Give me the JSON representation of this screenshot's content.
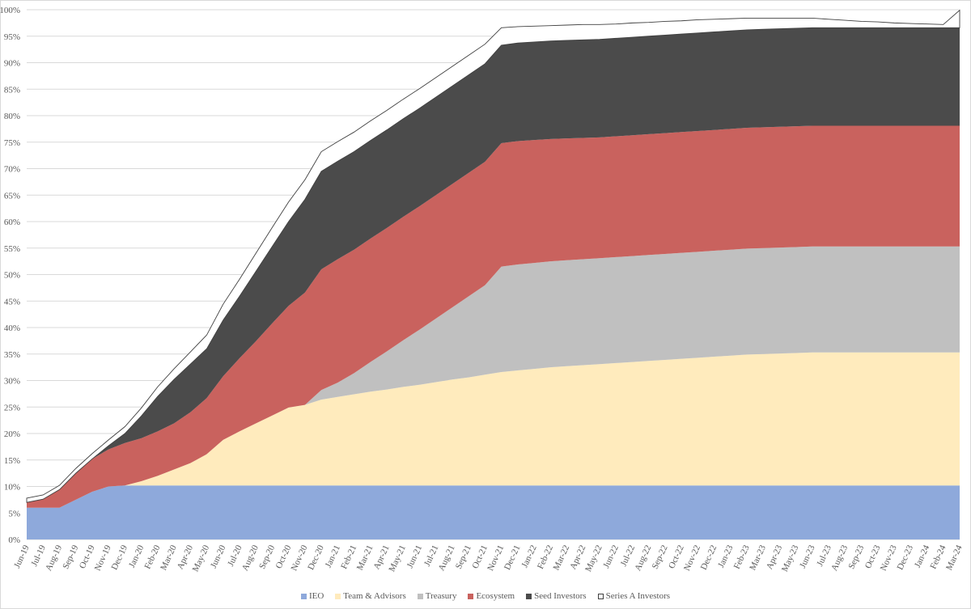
{
  "chart_data": {
    "type": "area",
    "stacked": true,
    "title": "",
    "xlabel": "",
    "ylabel": "",
    "ylim": [
      0,
      100
    ],
    "y_tick_labels": [
      "0%",
      "5%",
      "10%",
      "15%",
      "20%",
      "25%",
      "30%",
      "35%",
      "40%",
      "45%",
      "50%",
      "55%",
      "60%",
      "65%",
      "70%",
      "75%",
      "80%",
      "85%",
      "90%",
      "95%",
      "100%"
    ],
    "gridlines": true,
    "legend_position": "bottom",
    "categories": [
      "Jun-19",
      "Jul-19",
      "Aug-19",
      "Sep-19",
      "Oct-19",
      "Nov-19",
      "Dec-19",
      "Jan-20",
      "Feb-20",
      "Mar-20",
      "Apr-20",
      "May-20",
      "Jun-20",
      "Jul-20",
      "Aug-20",
      "Sep-20",
      "Oct-20",
      "Nov-20",
      "Dec-20",
      "Jan-21",
      "Feb-21",
      "Mar-21",
      "Apr-21",
      "May-21",
      "Jun-21",
      "Jul-21",
      "Aug-21",
      "Sep-21",
      "Oct-21",
      "Nov-21",
      "Dec-21",
      "Jan-22",
      "Feb-22",
      "Mar-22",
      "Apr-22",
      "May-22",
      "Jun-22",
      "Jul-22",
      "Aug-22",
      "Sep-22",
      "Oct-22",
      "Nov-22",
      "Dec-22",
      "Jan-23",
      "Feb-23",
      "Mar-23",
      "Apr-23",
      "May-23",
      "Jun-23",
      "Jul-23",
      "Aug-23",
      "Sep-23",
      "Oct-23",
      "Nov-23",
      "Dec-23",
      "Jan-24",
      "Feb-24",
      "Mar-24"
    ],
    "series": [
      {
        "name": "IEO",
        "color": "#8ea9db",
        "values": [
          6,
          6,
          6,
          7.5,
          9,
          10,
          10.2,
          10.2,
          10.2,
          10.2,
          10.2,
          10.2,
          10.2,
          10.2,
          10.2,
          10.2,
          10.2,
          10.2,
          10.2,
          10.2,
          10.2,
          10.2,
          10.2,
          10.2,
          10.2,
          10.2,
          10.2,
          10.2,
          10.2,
          10.2,
          10.2,
          10.2,
          10.2,
          10.2,
          10.2,
          10.2,
          10.2,
          10.2,
          10.2,
          10.2,
          10.2,
          10.2,
          10.2,
          10.2,
          10.2,
          10.2,
          10.2,
          10.2,
          10.2,
          10.2,
          10.2,
          10.2,
          10.2,
          10.2,
          10.2,
          10.2,
          10.2,
          10.2
        ]
      },
      {
        "name": "Team & Advisors",
        "color": "#ffebbd",
        "values": [
          0,
          0,
          0,
          0,
          0,
          0,
          0,
          0.8,
          1.8,
          3,
          4.2,
          5.9,
          8.6,
          10.2,
          11.7,
          13.2,
          14.7,
          15.2,
          16.2,
          16.7,
          17.2,
          17.7,
          18.1,
          18.6,
          19,
          19.5,
          20,
          20.4,
          20.9,
          21.4,
          21.7,
          22,
          22.3,
          22.5,
          22.7,
          22.9,
          23.1,
          23.3,
          23.5,
          23.7,
          23.9,
          24.1,
          24.3,
          24.5,
          24.7,
          24.8,
          24.9,
          25,
          25.1,
          25.1,
          25.1,
          25.1,
          25.1,
          25.1,
          25.1,
          25.1,
          25.1,
          25.1
        ]
      },
      {
        "name": "Treasury",
        "color": "#c0c0c0",
        "values": [
          0,
          0,
          0,
          0,
          0,
          0,
          0,
          0,
          0,
          0,
          0,
          0,
          0,
          0,
          0,
          0,
          0,
          0,
          1.8,
          2.7,
          4,
          5.6,
          7.2,
          8.8,
          10.4,
          12,
          13.6,
          15.3,
          16.9,
          19.9,
          20,
          20,
          20,
          20,
          20,
          20,
          20,
          20,
          20,
          20,
          20,
          20,
          20,
          20,
          20,
          20,
          20,
          20,
          20,
          20,
          20,
          20,
          20,
          20,
          20,
          20,
          20,
          20
        ]
      },
      {
        "name": "Ecosystem",
        "color": "#c9625e",
        "values": [
          1,
          1.6,
          3.4,
          5,
          6.2,
          7,
          8,
          8.1,
          8.4,
          8.7,
          9.6,
          10.6,
          12,
          13.8,
          15.5,
          17.4,
          19.2,
          21.2,
          22.8,
          23.3,
          23.3,
          23.3,
          23.3,
          23.3,
          23.3,
          23.3,
          23.3,
          23.3,
          23.3,
          23.3,
          23.3,
          23.2,
          23.1,
          23,
          22.9,
          22.8,
          22.8,
          22.8,
          22.8,
          22.8,
          22.8,
          22.8,
          22.8,
          22.8,
          22.8,
          22.8,
          22.8,
          22.8,
          22.8,
          22.8,
          22.8,
          22.8,
          22.8,
          22.8,
          22.8,
          22.8,
          22.8,
          22.8
        ]
      },
      {
        "name": "Seed Investors",
        "color": "#4b4b4b",
        "values": [
          0,
          0,
          0,
          0,
          0,
          0.7,
          1.8,
          4.2,
          6.6,
          8.3,
          9.1,
          9.3,
          10.6,
          11.7,
          13.2,
          14.5,
          15.9,
          17.6,
          18.5,
          18.5,
          18.5,
          18.5,
          18.5,
          18.5,
          18.5,
          18.5,
          18.5,
          18.5,
          18.5,
          18.5,
          18.5,
          18.5,
          18.5,
          18.5,
          18.5,
          18.5,
          18.5,
          18.5,
          18.5,
          18.5,
          18.5,
          18.5,
          18.5,
          18.5,
          18.5,
          18.5,
          18.5,
          18.5,
          18.5,
          18.5,
          18.5,
          18.5,
          18.5,
          18.5,
          18.5,
          18.5,
          18.5,
          18.5
        ]
      },
      {
        "name": "Series A Investors",
        "color": "#ffffff",
        "values": [
          0.8,
          0.8,
          0.8,
          0.9,
          1,
          1.1,
          1.3,
          1.5,
          1.8,
          2,
          2.3,
          2.6,
          3,
          3.2,
          3.4,
          3.6,
          3.7,
          3.7,
          3.7,
          3.7,
          3.7,
          3.7,
          3.7,
          3.7,
          3.7,
          3.7,
          3.7,
          3.7,
          3.7,
          3.3,
          3.1,
          3,
          2.9,
          2.9,
          2.9,
          2.8,
          2.7,
          2.7,
          2.6,
          2.6,
          2.5,
          2.5,
          2.4,
          2.3,
          2.2,
          2.1,
          2,
          1.9,
          1.8,
          1.6,
          1.4,
          1.2,
          1.1,
          0.9,
          0.8,
          0.7,
          0.6,
          3.3
        ]
      }
    ]
  }
}
